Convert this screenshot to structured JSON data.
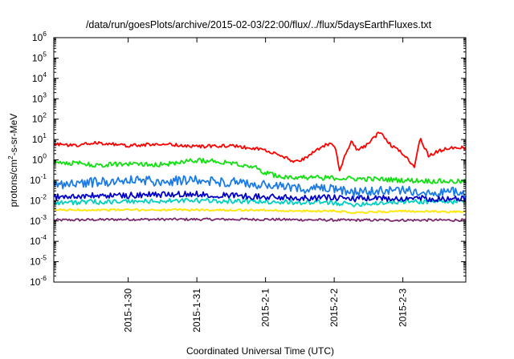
{
  "chart_data": {
    "type": "line",
    "title": "/data/run/goesPlots/archive/2015-02-03/22:00/flux/../flux/5daysEarthFluxes.txt",
    "xlabel": "Coordinated Universal Time (UTC)",
    "ylabel": {
      "prefix": "protons/cm",
      "sup": "2",
      "suffix": "-s-sr-MeV"
    },
    "xlim": [
      "2015-01-28T22:00",
      "2015-02-03T22:00"
    ],
    "x_ticks": [
      "2015-1-30",
      "2015-1-31",
      "2015-2-1",
      "2015-2-2",
      "2015-2-3"
    ],
    "y_scale": "log",
    "ylim": [
      1e-06,
      1000000.0
    ],
    "y_tick_exponents": [
      "-6",
      "-5",
      "-4",
      "-3",
      "-2",
      "-1",
      "0",
      "1",
      "2",
      "3",
      "4",
      "5",
      "6"
    ],
    "y_tick_base": "10",
    "grid": false,
    "series": [
      {
        "color": "#7a2a6e",
        "x": [
          "2015-01-28T22:00",
          "2015-01-30T00:00",
          "2015-01-31T00:00",
          "2015-02-01T00:00",
          "2015-02-02T00:00",
          "2015-02-03T00:00",
          "2015-02-03T22:00"
        ],
        "values": [
          0.0011,
          0.0012,
          0.0012,
          0.0012,
          0.0011,
          0.0011,
          0.0011
        ]
      },
      {
        "color": "#ffe600",
        "x": [
          "2015-01-28T22:00",
          "2015-01-30T00:00",
          "2015-01-31T00:00",
          "2015-02-01T00:00",
          "2015-02-01T12:00",
          "2015-02-02T00:00",
          "2015-02-02T06:00",
          "2015-02-03T00:00",
          "2015-02-03T22:00"
        ],
        "values": [
          0.0035,
          0.0035,
          0.0035,
          0.0034,
          0.003,
          0.0032,
          0.0026,
          0.003,
          0.0028
        ]
      },
      {
        "color": "#00d0c0",
        "x": [
          "2015-01-28T22:00",
          "2015-01-30T00:00",
          "2015-01-31T00:00",
          "2015-02-01T00:00",
          "2015-02-01T12:00",
          "2015-02-02T00:00",
          "2015-02-02T06:00",
          "2015-02-02T18:00",
          "2015-02-03T00:00",
          "2015-02-03T22:00"
        ],
        "values": [
          0.008,
          0.009,
          0.01,
          0.009,
          0.008,
          0.008,
          0.0065,
          0.008,
          0.009,
          0.009
        ]
      },
      {
        "color": "#0000c8",
        "x": [
          "2015-01-28T22:00",
          "2015-01-29T12:00",
          "2015-01-30T00:00",
          "2015-01-30T12:00",
          "2015-01-31T00:00",
          "2015-01-31T12:00",
          "2015-02-01T00:00",
          "2015-02-01T12:00",
          "2015-02-02T00:00",
          "2015-02-02T06:00",
          "2015-02-02T18:00",
          "2015-02-03T00:00",
          "2015-02-03T22:00"
        ],
        "values": [
          0.015,
          0.017,
          0.018,
          0.02,
          0.021,
          0.018,
          0.015,
          0.014,
          0.014,
          0.012,
          0.013,
          0.013,
          0.012
        ]
      },
      {
        "color": "#1a7ae6",
        "x": [
          "2015-01-28T22:00",
          "2015-01-29T12:00",
          "2015-01-30T00:00",
          "2015-01-30T12:00",
          "2015-01-31T00:00",
          "2015-01-31T12:00",
          "2015-02-01T00:00",
          "2015-02-01T12:00",
          "2015-02-02T00:00",
          "2015-02-02T06:00",
          "2015-02-02T18:00",
          "2015-02-03T00:00",
          "2015-02-03T22:00"
        ],
        "values": [
          0.06,
          0.08,
          0.1,
          0.09,
          0.1,
          0.08,
          0.055,
          0.04,
          0.035,
          0.025,
          0.03,
          0.03,
          0.025
        ]
      },
      {
        "color": "#10e010",
        "x": [
          "2015-01-28T22:00",
          "2015-01-29T06:00",
          "2015-01-29T12:00",
          "2015-01-30T00:00",
          "2015-01-30T12:00",
          "2015-01-31T00:00",
          "2015-01-31T12:00",
          "2015-01-31T20:00",
          "2015-02-01T00:00",
          "2015-02-01T06:00",
          "2015-02-01T12:00",
          "2015-02-02T00:00",
          "2015-02-02T06:00",
          "2015-02-02T18:00",
          "2015-02-03T00:00",
          "2015-02-03T12:00",
          "2015-02-03T22:00"
        ],
        "values": [
          0.75,
          0.7,
          0.55,
          0.65,
          0.6,
          0.95,
          0.75,
          0.45,
          0.22,
          0.15,
          0.14,
          0.13,
          0.12,
          0.11,
          0.1,
          0.09,
          0.085
        ]
      },
      {
        "color": "#ff0000",
        "x": [
          "2015-01-28T22:00",
          "2015-01-29T06:00",
          "2015-01-29T12:00",
          "2015-01-30T00:00",
          "2015-01-30T12:00",
          "2015-01-31T00:00",
          "2015-01-31T12:00",
          "2015-02-01T00:00",
          "2015-02-01T06:00",
          "2015-02-01T10:00",
          "2015-02-01T14:00",
          "2015-02-01T20:00",
          "2015-02-02T00:00",
          "2015-02-02T02:00",
          "2015-02-02T04:00",
          "2015-02-02T06:00",
          "2015-02-02T08:00",
          "2015-02-02T12:00",
          "2015-02-02T16:00",
          "2015-02-02T20:00",
          "2015-02-03T00:00",
          "2015-02-03T04:00",
          "2015-02-03T06:00",
          "2015-02-03T09:00",
          "2015-02-03T12:00",
          "2015-02-03T16:00",
          "2015-02-03T22:00"
        ],
        "values": [
          6,
          5,
          7,
          5,
          6,
          4.5,
          5,
          3,
          1.5,
          0.8,
          1.2,
          5,
          6,
          0.3,
          2,
          8,
          3,
          6,
          25,
          5,
          2,
          0.4,
          12,
          1.5,
          2.5,
          4,
          4
        ]
      }
    ]
  }
}
